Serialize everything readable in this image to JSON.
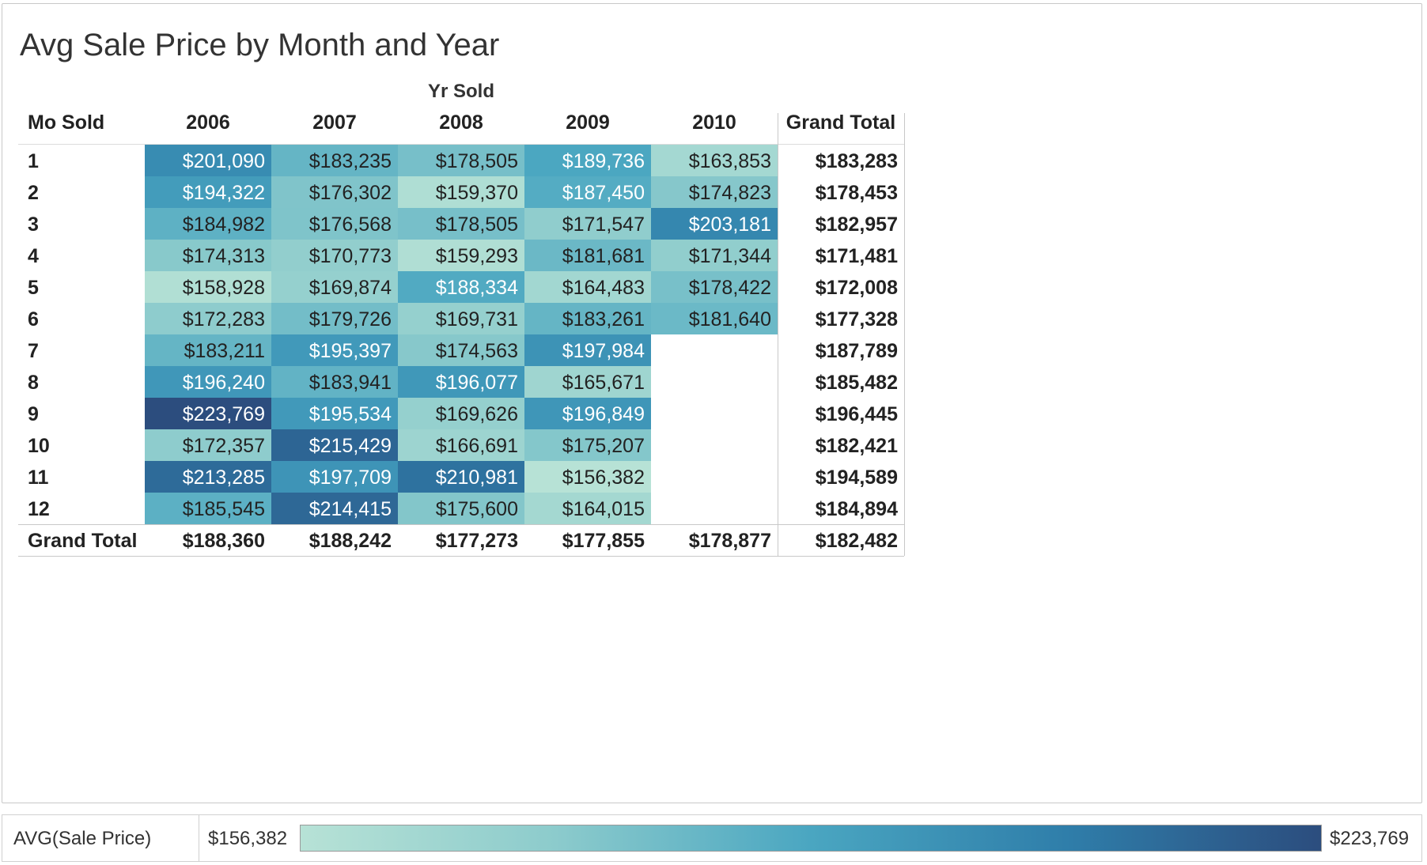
{
  "title": "Avg Sale Price by Month and Year",
  "chart_data": {
    "type": "heatmap",
    "title": "Avg Sale Price by Month and Year",
    "column_header": "Yr Sold",
    "row_header": "Mo Sold",
    "columns": [
      "2006",
      "2007",
      "2008",
      "2009",
      "2010"
    ],
    "rows": [
      "1",
      "2",
      "3",
      "4",
      "5",
      "6",
      "7",
      "8",
      "9",
      "10",
      "11",
      "12"
    ],
    "values": [
      [
        201090,
        183235,
        178505,
        189736,
        163853
      ],
      [
        194322,
        176302,
        159370,
        187450,
        174823
      ],
      [
        184982,
        176568,
        178505,
        171547,
        203181
      ],
      [
        174313,
        170773,
        159293,
        181681,
        171344
      ],
      [
        158928,
        169874,
        188334,
        164483,
        178422
      ],
      [
        172283,
        179726,
        169731,
        183261,
        181640
      ],
      [
        183211,
        195397,
        174563,
        197984,
        null
      ],
      [
        196240,
        183941,
        196077,
        165671,
        null
      ],
      [
        223769,
        195534,
        169626,
        196849,
        null
      ],
      [
        172357,
        215429,
        166691,
        175207,
        null
      ],
      [
        213285,
        197709,
        210981,
        156382,
        null
      ],
      [
        185545,
        214415,
        175600,
        164015,
        null
      ]
    ],
    "labels": [
      [
        "$201,090",
        "$183,235",
        "$178,505",
        "$189,736",
        "$163,853"
      ],
      [
        "$194,322",
        "$176,302",
        "$159,370",
        "$187,450",
        "$174,823"
      ],
      [
        "$184,982",
        "$176,568",
        "$178,505",
        "$171,547",
        "$203,181"
      ],
      [
        "$174,313",
        "$170,773",
        "$159,293",
        "$181,681",
        "$171,344"
      ],
      [
        "$158,928",
        "$169,874",
        "$188,334",
        "$164,483",
        "$178,422"
      ],
      [
        "$172,283",
        "$179,726",
        "$169,731",
        "$183,261",
        "$181,640"
      ],
      [
        "$183,211",
        "$195,397",
        "$174,563",
        "$197,984",
        null
      ],
      [
        "$196,240",
        "$183,941",
        "$196,077",
        "$165,671",
        null
      ],
      [
        "$223,769",
        "$195,534",
        "$169,626",
        "$196,849",
        null
      ],
      [
        "$172,357",
        "$215,429",
        "$166,691",
        "$175,207",
        null
      ],
      [
        "$213,285",
        "$197,709",
        "$210,981",
        "$156,382",
        null
      ],
      [
        "$185,545",
        "$214,415",
        "$175,600",
        "$164,015",
        null
      ]
    ],
    "grand_total_label": "Grand Total",
    "row_totals": [
      "$183,283",
      "$178,453",
      "$182,957",
      "$171,481",
      "$172,008",
      "$177,328",
      "$187,789",
      "$185,482",
      "$196,445",
      "$182,421",
      "$194,589",
      "$184,894"
    ],
    "column_totals": [
      "$188,360",
      "$188,242",
      "$177,273",
      "$177,855",
      "$178,877"
    ],
    "overall_total": "$182,482",
    "color_range": [
      156382,
      223769
    ],
    "color_scale": [
      "#b7e2d6",
      "#8ccbcc",
      "#4aa6c1",
      "#2f7eaa",
      "#2c4d7e"
    ],
    "text_color_dark": "#222222",
    "text_color_light": "#ffffff"
  },
  "legend": {
    "label": "AVG(Sale Price)",
    "min_label": "$156,382",
    "max_label": "$223,769"
  }
}
